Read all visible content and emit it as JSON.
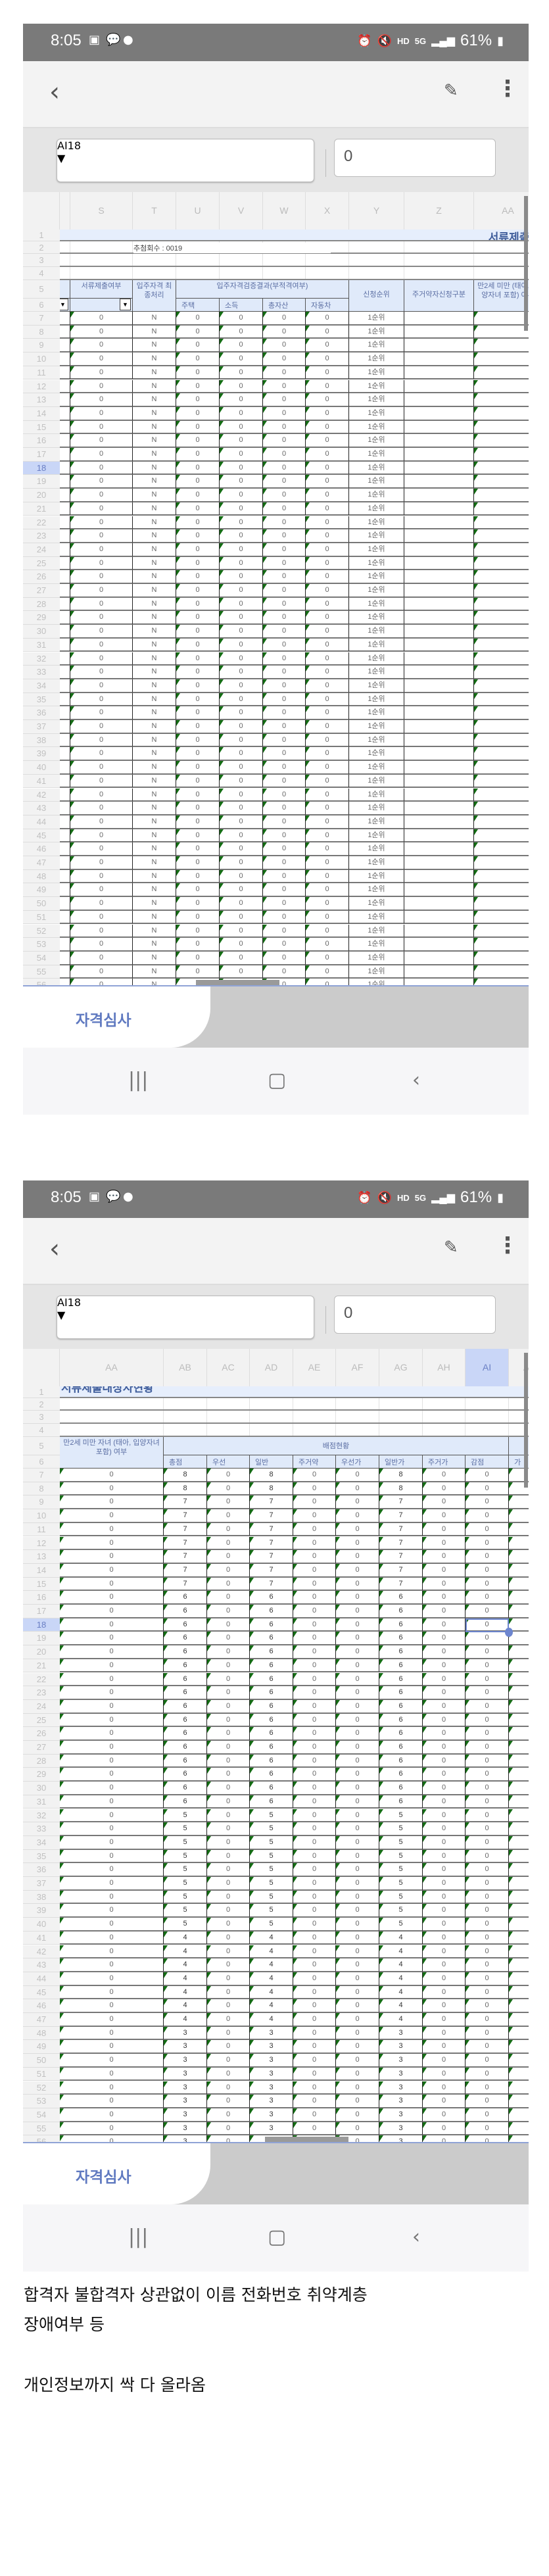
{
  "status_bar": {
    "time": "8:05",
    "battery": "61%",
    "hd": "HD",
    "network": "5G",
    "icons": [
      "gallery-icon",
      "kakaotalk-icon",
      "message-icon",
      "alarm-icon",
      "mute-icon",
      "signal-icon",
      "battery-icon"
    ]
  },
  "formula_bar": {
    "cell_ref": "AI18",
    "cell_value": "0"
  },
  "sheet_tab": "자격심사",
  "accent_color": "#5f79c0",
  "screens": [
    {
      "columns": [
        "",
        "S",
        "T",
        "U",
        "V",
        "W",
        "X",
        "Y",
        "Z",
        "AA"
      ],
      "row1_title": "서류제출대",
      "row2_text": "추첨회수 : 0019",
      "header_row5": {
        "S": "서류제출여부",
        "T": "입주자격 최종처리",
        "UX": "입주자격검증결과(부적격여부)",
        "Y": "신청순위",
        "Z": "주거약자신청구분",
        "AA": "만2세 미만 (태아, 입양자녀 포함) 여부"
      },
      "header_row6": {
        "U": "주택",
        "V": "소득",
        "W": "총자산",
        "X": "자동차"
      },
      "rows": [
        [
          "7",
          "0",
          "N",
          "0",
          "0",
          "0",
          "0",
          "1순위",
          "",
          "0"
        ],
        [
          "8",
          "0",
          "N",
          "0",
          "0",
          "0",
          "0",
          "1순위",
          "",
          "0"
        ],
        [
          "9",
          "0",
          "N",
          "0",
          "0",
          "0",
          "0",
          "1순위",
          "",
          "0"
        ],
        [
          "10",
          "0",
          "N",
          "0",
          "0",
          "0",
          "0",
          "1순위",
          "",
          "0"
        ],
        [
          "11",
          "0",
          "N",
          "0",
          "0",
          "0",
          "0",
          "1순위",
          "",
          "0"
        ],
        [
          "12",
          "0",
          "N",
          "0",
          "0",
          "0",
          "0",
          "1순위",
          "",
          "0"
        ],
        [
          "13",
          "0",
          "N",
          "0",
          "0",
          "0",
          "0",
          "1순위",
          "",
          "0"
        ],
        [
          "14",
          "0",
          "N",
          "0",
          "0",
          "0",
          "0",
          "1순위",
          "",
          "0"
        ],
        [
          "15",
          "0",
          "N",
          "0",
          "0",
          "0",
          "0",
          "1순위",
          "",
          "0"
        ],
        [
          "16",
          "0",
          "N",
          "0",
          "0",
          "0",
          "0",
          "1순위",
          "",
          "0"
        ],
        [
          "17",
          "0",
          "N",
          "0",
          "0",
          "0",
          "0",
          "1순위",
          "",
          "0"
        ],
        [
          "18",
          "0",
          "N",
          "0",
          "0",
          "0",
          "0",
          "1순위",
          "",
          "0"
        ],
        [
          "19",
          "0",
          "N",
          "0",
          "0",
          "0",
          "0",
          "1순위",
          "",
          "0"
        ],
        [
          "20",
          "0",
          "N",
          "0",
          "0",
          "0",
          "0",
          "1순위",
          "",
          "0"
        ],
        [
          "21",
          "0",
          "N",
          "0",
          "0",
          "0",
          "0",
          "1순위",
          "",
          "0"
        ],
        [
          "22",
          "0",
          "N",
          "0",
          "0",
          "0",
          "0",
          "1순위",
          "",
          "0"
        ],
        [
          "23",
          "0",
          "N",
          "0",
          "0",
          "0",
          "0",
          "1순위",
          "",
          "0"
        ],
        [
          "24",
          "0",
          "N",
          "0",
          "0",
          "0",
          "0",
          "1순위",
          "",
          "0"
        ],
        [
          "25",
          "0",
          "N",
          "0",
          "0",
          "0",
          "0",
          "1순위",
          "",
          "0"
        ],
        [
          "26",
          "0",
          "N",
          "0",
          "0",
          "0",
          "0",
          "1순위",
          "",
          "0"
        ],
        [
          "27",
          "0",
          "N",
          "0",
          "0",
          "0",
          "0",
          "1순위",
          "",
          "0"
        ],
        [
          "28",
          "0",
          "N",
          "0",
          "0",
          "0",
          "0",
          "1순위",
          "",
          "0"
        ],
        [
          "29",
          "0",
          "N",
          "0",
          "0",
          "0",
          "0",
          "1순위",
          "",
          "0"
        ],
        [
          "30",
          "0",
          "N",
          "0",
          "0",
          "0",
          "0",
          "1순위",
          "",
          "0"
        ],
        [
          "31",
          "0",
          "N",
          "0",
          "0",
          "0",
          "0",
          "1순위",
          "",
          "0"
        ],
        [
          "32",
          "0",
          "N",
          "0",
          "0",
          "0",
          "0",
          "1순위",
          "",
          "0"
        ],
        [
          "33",
          "0",
          "N",
          "0",
          "0",
          "0",
          "0",
          "1순위",
          "",
          "0"
        ],
        [
          "34",
          "0",
          "N",
          "0",
          "0",
          "0",
          "0",
          "1순위",
          "",
          "0"
        ],
        [
          "35",
          "0",
          "N",
          "0",
          "0",
          "0",
          "0",
          "1순위",
          "",
          "0"
        ],
        [
          "36",
          "0",
          "N",
          "0",
          "0",
          "0",
          "0",
          "1순위",
          "",
          "0"
        ],
        [
          "37",
          "0",
          "N",
          "0",
          "0",
          "0",
          "0",
          "1순위",
          "",
          "0"
        ],
        [
          "38",
          "0",
          "N",
          "0",
          "0",
          "0",
          "0",
          "1순위",
          "",
          "0"
        ],
        [
          "39",
          "0",
          "N",
          "0",
          "0",
          "0",
          "0",
          "1순위",
          "",
          "0"
        ],
        [
          "40",
          "0",
          "N",
          "0",
          "0",
          "0",
          "0",
          "1순위",
          "",
          "0"
        ],
        [
          "41",
          "0",
          "N",
          "0",
          "0",
          "0",
          "0",
          "1순위",
          "",
          "0"
        ],
        [
          "42",
          "0",
          "N",
          "0",
          "0",
          "0",
          "0",
          "1순위",
          "",
          "0"
        ],
        [
          "43",
          "0",
          "N",
          "0",
          "0",
          "0",
          "0",
          "1순위",
          "",
          "0"
        ],
        [
          "44",
          "0",
          "N",
          "0",
          "0",
          "0",
          "0",
          "1순위",
          "",
          "0"
        ],
        [
          "45",
          "0",
          "N",
          "0",
          "0",
          "0",
          "0",
          "1순위",
          "",
          "0"
        ],
        [
          "46",
          "0",
          "N",
          "0",
          "0",
          "0",
          "0",
          "1순위",
          "",
          "0"
        ],
        [
          "47",
          "0",
          "N",
          "0",
          "0",
          "0",
          "0",
          "1순위",
          "",
          "0"
        ],
        [
          "48",
          "0",
          "N",
          "0",
          "0",
          "0",
          "0",
          "1순위",
          "",
          "0"
        ],
        [
          "49",
          "0",
          "N",
          "0",
          "0",
          "0",
          "0",
          "1순위",
          "",
          "0"
        ],
        [
          "50",
          "0",
          "N",
          "0",
          "0",
          "0",
          "0",
          "1순위",
          "",
          "0"
        ],
        [
          "51",
          "0",
          "N",
          "0",
          "0",
          "0",
          "0",
          "1순위",
          "",
          "0"
        ],
        [
          "52",
          "0",
          "N",
          "0",
          "0",
          "0",
          "0",
          "1순위",
          "",
          "0"
        ],
        [
          "53",
          "0",
          "N",
          "0",
          "0",
          "0",
          "0",
          "1순위",
          "",
          "0"
        ],
        [
          "54",
          "0",
          "N",
          "0",
          "0",
          "0",
          "0",
          "1순위",
          "",
          "0"
        ],
        [
          "55",
          "0",
          "N",
          "0",
          "0",
          "0",
          "0",
          "1순위",
          "",
          "0"
        ],
        [
          "56",
          "0",
          "N",
          "0",
          "0",
          "0",
          "0",
          "1순위",
          "",
          "0"
        ]
      ]
    },
    {
      "columns": [
        "AA",
        "AB",
        "AC",
        "AD",
        "AE",
        "AF",
        "AG",
        "AH",
        "AI",
        "AJ"
      ],
      "selected_column": "AI",
      "row1_title": "서류제출대상자현황",
      "header_row5": {
        "AA": "만2세 미만 자녀 (태아, 입양자녀 포함) 여부",
        "AB_AI": "배점현황"
      },
      "header_row6": [
        "총점",
        "우선",
        "일반",
        "주거약",
        "우선가",
        "일반가",
        "주거가",
        "감점",
        "가"
      ],
      "rows": [
        [
          "7",
          "0",
          "8",
          "0",
          "8",
          "0",
          "0",
          "8",
          "0",
          "0"
        ],
        [
          "8",
          "0",
          "8",
          "0",
          "8",
          "0",
          "0",
          "8",
          "0",
          "0"
        ],
        [
          "9",
          "0",
          "7",
          "0",
          "7",
          "0",
          "0",
          "7",
          "0",
          "0"
        ],
        [
          "10",
          "0",
          "7",
          "0",
          "7",
          "0",
          "0",
          "7",
          "0",
          "0"
        ],
        [
          "11",
          "0",
          "7",
          "0",
          "7",
          "0",
          "0",
          "7",
          "0",
          "0"
        ],
        [
          "12",
          "0",
          "7",
          "0",
          "7",
          "0",
          "0",
          "7",
          "0",
          "0"
        ],
        [
          "13",
          "0",
          "7",
          "0",
          "7",
          "0",
          "0",
          "7",
          "0",
          "0"
        ],
        [
          "14",
          "0",
          "7",
          "0",
          "7",
          "0",
          "0",
          "7",
          "0",
          "0"
        ],
        [
          "15",
          "0",
          "7",
          "0",
          "7",
          "0",
          "0",
          "7",
          "0",
          "0"
        ],
        [
          "16",
          "0",
          "6",
          "0",
          "6",
          "0",
          "0",
          "6",
          "0",
          "0"
        ],
        [
          "17",
          "0",
          "6",
          "0",
          "6",
          "0",
          "0",
          "6",
          "0",
          "0"
        ],
        [
          "18",
          "0",
          "6",
          "0",
          "6",
          "0",
          "0",
          "6",
          "0",
          "0"
        ],
        [
          "19",
          "0",
          "6",
          "0",
          "6",
          "0",
          "0",
          "6",
          "0",
          "0"
        ],
        [
          "20",
          "0",
          "6",
          "0",
          "6",
          "0",
          "0",
          "6",
          "0",
          "0"
        ],
        [
          "21",
          "0",
          "6",
          "0",
          "6",
          "0",
          "0",
          "6",
          "0",
          "0"
        ],
        [
          "22",
          "0",
          "6",
          "0",
          "6",
          "0",
          "0",
          "6",
          "0",
          "0"
        ],
        [
          "23",
          "0",
          "6",
          "0",
          "6",
          "0",
          "0",
          "6",
          "0",
          "0"
        ],
        [
          "24",
          "0",
          "6",
          "0",
          "6",
          "0",
          "0",
          "6",
          "0",
          "0"
        ],
        [
          "25",
          "0",
          "6",
          "0",
          "6",
          "0",
          "0",
          "6",
          "0",
          "0"
        ],
        [
          "26",
          "0",
          "6",
          "0",
          "6",
          "0",
          "0",
          "6",
          "0",
          "0"
        ],
        [
          "27",
          "0",
          "6",
          "0",
          "6",
          "0",
          "0",
          "6",
          "0",
          "0"
        ],
        [
          "28",
          "0",
          "6",
          "0",
          "6",
          "0",
          "0",
          "6",
          "0",
          "0"
        ],
        [
          "29",
          "0",
          "6",
          "0",
          "6",
          "0",
          "0",
          "6",
          "0",
          "0"
        ],
        [
          "30",
          "0",
          "6",
          "0",
          "6",
          "0",
          "0",
          "6",
          "0",
          "0"
        ],
        [
          "31",
          "0",
          "6",
          "0",
          "6",
          "0",
          "0",
          "6",
          "0",
          "0"
        ],
        [
          "32",
          "0",
          "5",
          "0",
          "5",
          "0",
          "0",
          "5",
          "0",
          "0"
        ],
        [
          "33",
          "0",
          "5",
          "0",
          "5",
          "0",
          "0",
          "5",
          "0",
          "0"
        ],
        [
          "34",
          "0",
          "5",
          "0",
          "5",
          "0",
          "0",
          "5",
          "0",
          "0"
        ],
        [
          "35",
          "0",
          "5",
          "0",
          "5",
          "0",
          "0",
          "5",
          "0",
          "0"
        ],
        [
          "36",
          "0",
          "5",
          "0",
          "5",
          "0",
          "0",
          "5",
          "0",
          "0"
        ],
        [
          "37",
          "0",
          "5",
          "0",
          "5",
          "0",
          "0",
          "5",
          "0",
          "0"
        ],
        [
          "38",
          "0",
          "5",
          "0",
          "5",
          "0",
          "0",
          "5",
          "0",
          "0"
        ],
        [
          "39",
          "0",
          "5",
          "0",
          "5",
          "0",
          "0",
          "5",
          "0",
          "0"
        ],
        [
          "40",
          "0",
          "5",
          "0",
          "5",
          "0",
          "0",
          "5",
          "0",
          "0"
        ],
        [
          "41",
          "0",
          "4",
          "0",
          "4",
          "0",
          "0",
          "4",
          "0",
          "0"
        ],
        [
          "42",
          "0",
          "4",
          "0",
          "4",
          "0",
          "0",
          "4",
          "0",
          "0"
        ],
        [
          "43",
          "0",
          "4",
          "0",
          "4",
          "0",
          "0",
          "4",
          "0",
          "0"
        ],
        [
          "44",
          "0",
          "4",
          "0",
          "4",
          "0",
          "0",
          "4",
          "0",
          "0"
        ],
        [
          "45",
          "0",
          "4",
          "0",
          "4",
          "0",
          "0",
          "4",
          "0",
          "0"
        ],
        [
          "46",
          "0",
          "4",
          "0",
          "4",
          "0",
          "0",
          "4",
          "0",
          "0"
        ],
        [
          "47",
          "0",
          "4",
          "0",
          "4",
          "0",
          "0",
          "4",
          "0",
          "0"
        ],
        [
          "48",
          "0",
          "3",
          "0",
          "3",
          "0",
          "0",
          "3",
          "0",
          "0"
        ],
        [
          "49",
          "0",
          "3",
          "0",
          "3",
          "0",
          "0",
          "3",
          "0",
          "0"
        ],
        [
          "50",
          "0",
          "3",
          "0",
          "3",
          "0",
          "0",
          "3",
          "0",
          "0"
        ],
        [
          "51",
          "0",
          "3",
          "0",
          "3",
          "0",
          "0",
          "3",
          "0",
          "0"
        ],
        [
          "52",
          "0",
          "3",
          "0",
          "3",
          "0",
          "0",
          "3",
          "0",
          "0"
        ],
        [
          "53",
          "0",
          "3",
          "0",
          "3",
          "0",
          "0",
          "3",
          "0",
          "0"
        ],
        [
          "54",
          "0",
          "3",
          "0",
          "3",
          "0",
          "0",
          "3",
          "0",
          "0"
        ],
        [
          "55",
          "0",
          "3",
          "0",
          "3",
          "0",
          "0",
          "3",
          "0",
          "0"
        ],
        [
          "56",
          "0",
          "3",
          "0",
          "3",
          "0",
          "0",
          "3",
          "0",
          "0"
        ]
      ]
    }
  ],
  "selected_row": "18",
  "caption": {
    "line1": "합격자 불합격자 상관없이 이름 전화번호 취약계층",
    "line2": "장애여부 등",
    "line3": "개인정보까지 싹 다 올라옴"
  }
}
